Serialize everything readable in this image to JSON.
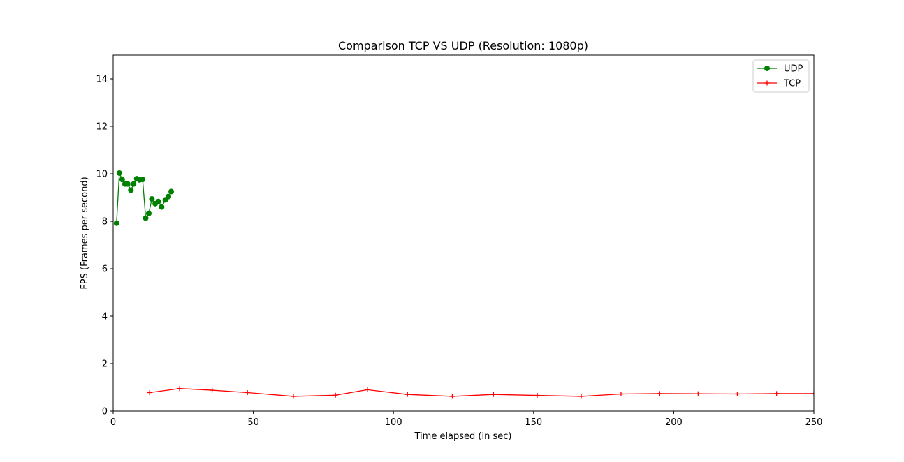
{
  "chart_data": {
    "type": "line",
    "title": "Comparison TCP VS UDP (Resolution: 1080p)",
    "xlabel": "Time elapsed (in sec)",
    "ylabel": "FPS (Frames per second)",
    "xlim": [
      0,
      250
    ],
    "ylim": [
      0,
      15
    ],
    "xticks": [
      0,
      50,
      100,
      150,
      200,
      250
    ],
    "yticks": [
      0,
      2,
      4,
      6,
      8,
      10,
      12,
      14
    ],
    "grid": false,
    "legend_position": "top-right",
    "series": [
      {
        "name": "UDP",
        "color": "#008000",
        "marker": "circle",
        "points": [
          [
            1.2,
            7.92
          ],
          [
            2.2,
            10.03
          ],
          [
            3.2,
            9.76
          ],
          [
            4.2,
            9.57
          ],
          [
            5.2,
            9.57
          ],
          [
            6.3,
            9.31
          ],
          [
            7.3,
            9.57
          ],
          [
            8.4,
            9.79
          ],
          [
            9.4,
            9.74
          ],
          [
            10.5,
            9.76
          ],
          [
            11.6,
            8.13
          ],
          [
            12.7,
            8.33
          ],
          [
            13.8,
            8.94
          ],
          [
            15.0,
            8.74
          ],
          [
            16.1,
            8.83
          ],
          [
            17.3,
            8.6
          ],
          [
            18.6,
            8.9
          ],
          [
            19.7,
            9.04
          ],
          [
            20.7,
            9.25
          ]
        ]
      },
      {
        "name": "TCP",
        "color": "#ff0000",
        "marker": "plus",
        "points": [
          [
            13.0,
            0.78
          ],
          [
            23.7,
            0.95
          ],
          [
            35.3,
            0.88
          ],
          [
            47.9,
            0.78
          ],
          [
            64.3,
            0.62
          ],
          [
            79.3,
            0.67
          ],
          [
            90.7,
            0.9
          ],
          [
            105.0,
            0.7
          ],
          [
            121.0,
            0.62
          ],
          [
            135.7,
            0.7
          ],
          [
            151.3,
            0.66
          ],
          [
            167.0,
            0.62
          ],
          [
            181.2,
            0.72
          ],
          [
            195.0,
            0.74
          ],
          [
            208.7,
            0.73
          ],
          [
            222.7,
            0.72
          ],
          [
            236.7,
            0.74
          ],
          [
            250.0,
            0.74
          ]
        ]
      }
    ]
  }
}
